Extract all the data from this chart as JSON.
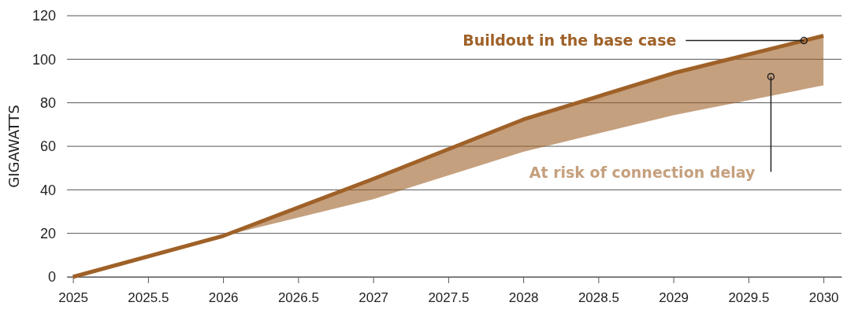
{
  "chart_data": {
    "type": "line",
    "ylabel": "GIGAWATTS",
    "x": [
      2025,
      2026,
      2027,
      2028,
      2029,
      2030
    ],
    "series": [
      {
        "color": "#9f6128",
        "values": [
          0,
          18.8,
          45,
          72.3,
          93.6,
          110.8
        ],
        "lower": [
          0,
          18.8,
          35.7,
          57.5,
          74.3,
          88
        ],
        "upper": [
          0,
          18.8,
          45,
          72.3,
          93.6,
          110.8
        ]
      }
    ],
    "xlim": [
      2024.96,
      2030.12
    ],
    "xticks": [
      2025,
      2025.5,
      2026,
      2026.5,
      2027,
      2027.5,
      2028,
      2028.5,
      2029,
      2029.5,
      2030
    ],
    "ylim": [
      0,
      120
    ],
    "yticks": [
      0,
      20,
      40,
      60,
      80,
      100,
      120
    ],
    "grid": "y",
    "marker": "none",
    "line_style": "solid",
    "annotations": [
      {
        "text": "Buildout in the base case",
        "x": 2029.87,
        "y": 108.6
      },
      {
        "text": "At risk of connection delay",
        "x": 2029.65,
        "y": 92
      }
    ]
  }
}
